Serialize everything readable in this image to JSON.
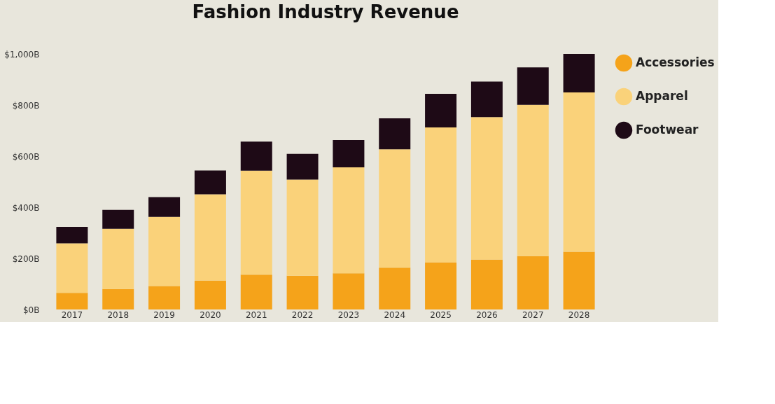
{
  "chart_data": {
    "type": "bar",
    "title": "Fashion Industry Revenue",
    "stacked": true,
    "categories": [
      "2017",
      "2018",
      "2019",
      "2020",
      "2021",
      "2022",
      "2023",
      "2024",
      "2025",
      "2026",
      "2027",
      "2028"
    ],
    "series": [
      {
        "name": "Accessories",
        "color": "#f5a31a",
        "values": [
          65,
          80,
          92,
          113,
          136,
          132,
          142,
          164,
          184,
          195,
          209,
          226
        ]
      },
      {
        "name": "Apparel",
        "color": "#fad27a",
        "values": [
          194,
          236,
          270,
          338,
          407,
          376,
          414,
          463,
          528,
          558,
          592,
          623
        ]
      },
      {
        "name": "Footwear",
        "color": "#1e0a16",
        "values": [
          64,
          74,
          78,
          93,
          114,
          101,
          107,
          121,
          132,
          139,
          146,
          151
        ]
      }
    ],
    "ylim": [
      0,
      1000
    ],
    "yticks": [
      {
        "value": 0,
        "label": "$0B"
      },
      {
        "value": 200,
        "label": "$200B"
      },
      {
        "value": 400,
        "label": "$400B"
      },
      {
        "value": 600,
        "label": "$600B"
      },
      {
        "value": 800,
        "label": "$800B"
      },
      {
        "value": 1000,
        "label": "$1,000B"
      }
    ],
    "grid": false,
    "legend": "right"
  }
}
